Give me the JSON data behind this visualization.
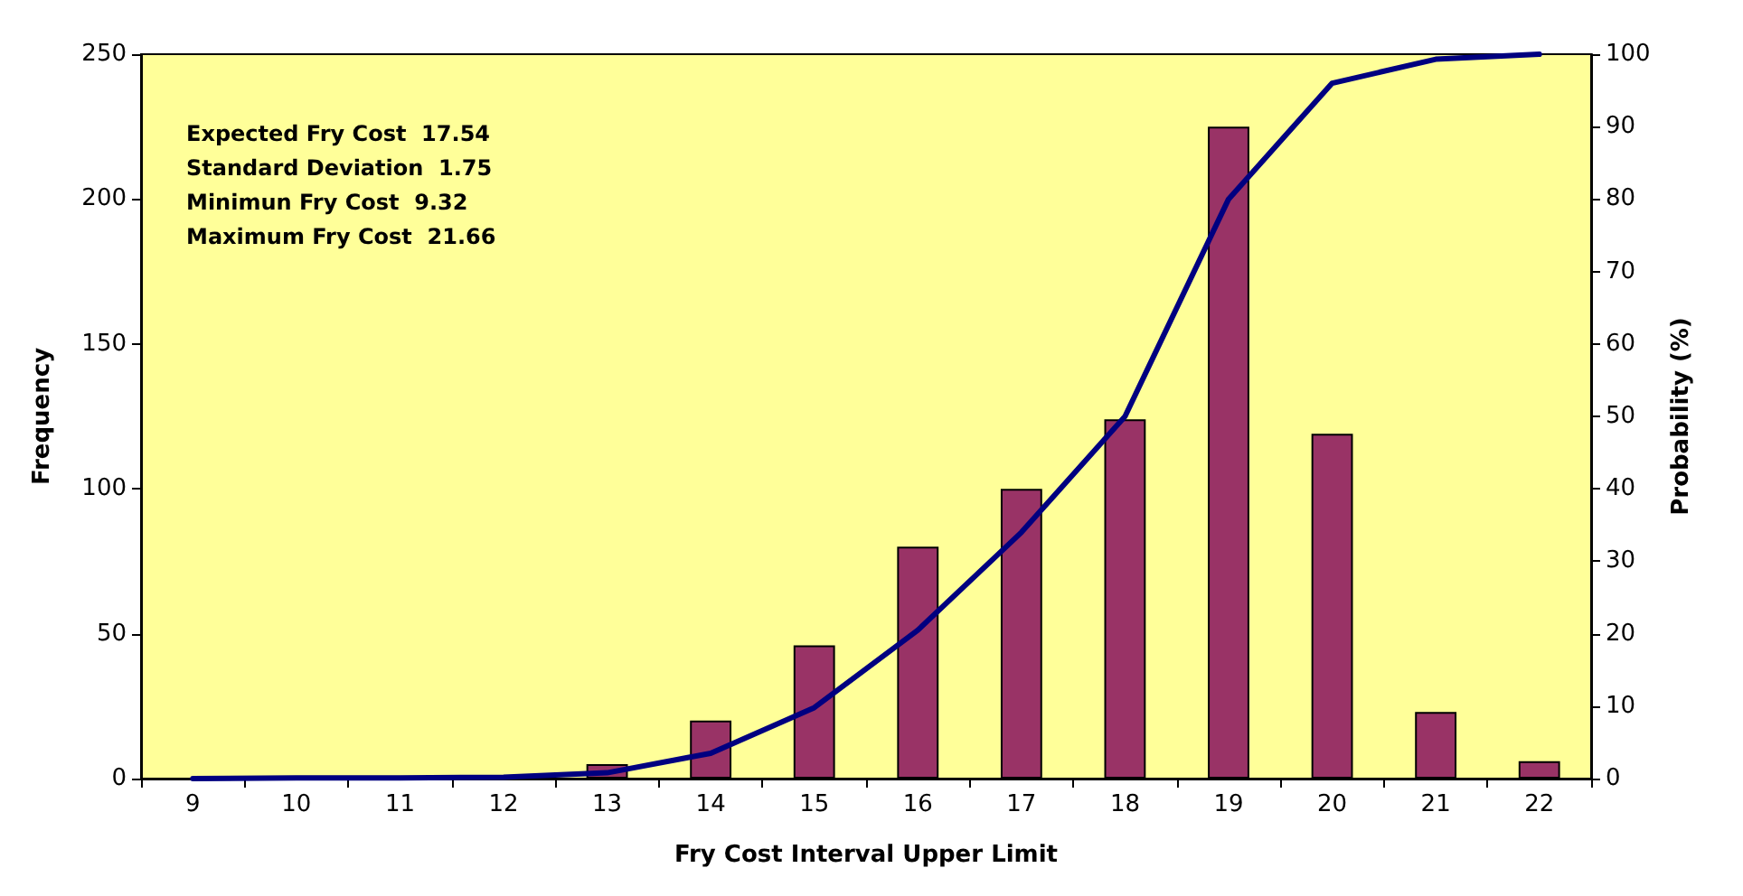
{
  "chart_data": {
    "type": "bar",
    "xlabel": "Fry Cost Interval Upper Limit",
    "ylabel": "Frequency",
    "y2label": "Probability (%)",
    "categories": [
      "9",
      "10",
      "11",
      "12",
      "13",
      "14",
      "15",
      "16",
      "17",
      "18",
      "19",
      "20",
      "21",
      "22"
    ],
    "series": [
      {
        "color": "#993366",
        "values": [
          0,
          0,
          0,
          0,
          5,
          20,
          46,
          80,
          100,
          124,
          225,
          119,
          23,
          6
        ]
      },
      {
        "type": "line",
        "axis": "y2",
        "color": "#000080",
        "values": [
          0,
          0.1,
          0.1,
          0.2,
          0.8,
          3.5,
          9.8,
          20.5,
          34,
          50,
          80,
          96,
          99.3,
          100
        ]
      }
    ],
    "ylim": [
      0,
      250
    ],
    "yticks": [
      0,
      50,
      100,
      150,
      200,
      250
    ],
    "y2lim": [
      0,
      100
    ],
    "y2ticks": [
      0,
      10,
      20,
      30,
      40,
      50,
      60,
      70,
      80,
      90,
      100
    ],
    "grid": false,
    "marker": "none",
    "line_style": "solid",
    "annotations": [
      "Expected Fry Cost  17.54",
      "Standard Deviation  1.75",
      "Minimun Fry Cost  9.32",
      "Maximum Fry Cost  21.66"
    ]
  }
}
